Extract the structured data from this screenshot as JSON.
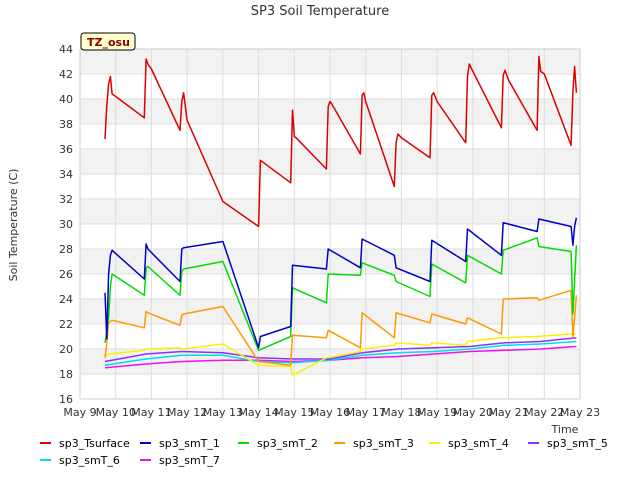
{
  "chart_data": {
    "type": "line",
    "title": "SP3 Soil Temperature",
    "xlabel": "Time",
    "ylabel": "Soil Temperature (C)",
    "annotation": "TZ_osu",
    "x_ticks": [
      "May 9",
      "May 10",
      "May 11",
      "May 12",
      "May 13",
      "May 14",
      "May 15",
      "May 16",
      "May 17",
      "May 18",
      "May 19",
      "May 20",
      "May 21",
      "May 22",
      "May 23"
    ],
    "xlim": [
      9,
      23
    ],
    "ylim": [
      16,
      44
    ],
    "y_ticks": [
      16,
      18,
      20,
      22,
      24,
      26,
      28,
      30,
      32,
      34,
      36,
      38,
      40,
      42,
      44
    ],
    "grid": true,
    "background_bands": true,
    "legend_position": "bottom",
    "series": [
      {
        "name": "sp3_Tsurface",
        "color": "#dd0000",
        "x": [
          9.7,
          9.75,
          9.8,
          9.85,
          9.9,
          10.0,
          10.8,
          10.85,
          10.9,
          11.0,
          11.8,
          11.85,
          11.9,
          12.0,
          13.0,
          14.0,
          14.05,
          14.9,
          14.95,
          15.0,
          15.05,
          15.9,
          15.95,
          16.0,
          16.05,
          16.85,
          16.9,
          16.95,
          17.0,
          17.8,
          17.85,
          17.9,
          18.0,
          18.8,
          18.85,
          18.9,
          19.0,
          19.8,
          19.85,
          19.9,
          20.0,
          20.8,
          20.85,
          20.9,
          21.0,
          21.8,
          21.85,
          21.9,
          22.0,
          22.75,
          22.8,
          22.85,
          22.9
        ],
        "y": [
          36.8,
          39.5,
          41.2,
          41.8,
          40.4,
          40.2,
          38.5,
          43.2,
          42.8,
          42.4,
          37.5,
          39.8,
          40.5,
          38.3,
          31.8,
          29.8,
          35.1,
          33.3,
          39.1,
          37.0,
          36.9,
          34.4,
          39.4,
          39.8,
          39.6,
          35.6,
          40.3,
          40.5,
          39.8,
          33.0,
          36.5,
          37.2,
          36.9,
          35.3,
          40.3,
          40.5,
          39.8,
          36.5,
          41.8,
          42.8,
          42.2,
          37.7,
          41.9,
          42.3,
          41.5,
          37.5,
          43.4,
          42.2,
          42.0,
          36.3,
          40.6,
          42.6,
          40.5
        ]
      },
      {
        "name": "sp3_smT_1",
        "color": "#0000cc",
        "x": [
          9.7,
          9.75,
          9.8,
          9.85,
          9.9,
          10.8,
          10.85,
          10.9,
          11.8,
          11.85,
          11.9,
          13.0,
          14.0,
          14.05,
          14.9,
          14.95,
          15.9,
          15.95,
          16.85,
          16.9,
          17.8,
          17.85,
          18.8,
          18.85,
          19.8,
          19.85,
          20.8,
          20.85,
          21.8,
          21.85,
          22.75,
          22.8,
          22.85,
          22.9
        ],
        "y": [
          24.5,
          20.8,
          26.0,
          27.5,
          27.9,
          25.6,
          28.4,
          28.0,
          25.4,
          28.0,
          28.1,
          28.6,
          20.1,
          21.0,
          21.8,
          26.7,
          26.4,
          28.0,
          26.5,
          28.8,
          27.5,
          26.5,
          25.4,
          28.7,
          27.0,
          29.6,
          27.5,
          30.1,
          29.4,
          30.4,
          29.8,
          28.3,
          29.8,
          30.5
        ]
      },
      {
        "name": "sp3_smT_2",
        "color": "#00dd00",
        "x": [
          9.7,
          9.8,
          9.85,
          9.9,
          10.8,
          10.85,
          10.9,
          11.8,
          11.85,
          11.9,
          13.0,
          14.0,
          14.9,
          14.95,
          15.9,
          15.95,
          16.85,
          16.9,
          17.8,
          17.85,
          18.8,
          18.85,
          19.8,
          19.85,
          20.8,
          20.85,
          21.8,
          21.85,
          22.75,
          22.8,
          22.9
        ],
        "y": [
          20.5,
          22.5,
          25.0,
          26.0,
          24.3,
          26.5,
          26.6,
          24.3,
          26.2,
          26.4,
          27.0,
          19.9,
          21.0,
          24.9,
          23.7,
          26.0,
          25.9,
          26.9,
          25.9,
          25.4,
          24.2,
          26.8,
          25.3,
          27.5,
          26.0,
          27.9,
          28.9,
          28.2,
          27.8,
          22.8,
          28.3
        ]
      },
      {
        "name": "sp3_smT_3",
        "color": "#ff9900",
        "x": [
          9.7,
          9.75,
          9.8,
          9.9,
          10.8,
          10.85,
          10.9,
          11.8,
          11.85,
          11.9,
          13.0,
          14.0,
          14.9,
          14.95,
          15.9,
          15.95,
          16.85,
          16.9,
          17.8,
          17.85,
          18.8,
          18.85,
          19.8,
          19.85,
          20.8,
          20.85,
          21.8,
          21.85,
          22.75,
          22.8,
          22.9
        ],
        "y": [
          19.3,
          20.5,
          22.1,
          22.3,
          21.7,
          23.0,
          22.9,
          21.9,
          22.7,
          22.8,
          23.4,
          19.0,
          18.7,
          21.1,
          20.9,
          21.5,
          20.1,
          22.9,
          20.9,
          22.9,
          22.1,
          22.8,
          22.0,
          22.5,
          21.2,
          24.0,
          24.1,
          23.9,
          24.7,
          20.9,
          24.3
        ]
      },
      {
        "name": "sp3_smT_4",
        "color": "#ffee00",
        "x": [
          9.7,
          9.75,
          9.8,
          10.8,
          10.85,
          11.8,
          11.85,
          13.0,
          14.0,
          14.9,
          14.95,
          15.9,
          16.85,
          16.9,
          17.8,
          17.85,
          18.8,
          18.85,
          19.8,
          19.85,
          20.8,
          21.8,
          22.75,
          22.9
        ],
        "y": [
          19.3,
          19.5,
          19.6,
          19.9,
          20.0,
          20.1,
          20.0,
          20.4,
          18.7,
          18.6,
          17.9,
          19.3,
          19.8,
          20.0,
          20.3,
          20.5,
          20.3,
          20.5,
          20.3,
          20.6,
          20.9,
          21.0,
          21.2,
          21.2
        ]
      },
      {
        "name": "sp3_smT_5",
        "color": "#8833ff",
        "x": [
          9.7,
          10.85,
          11.85,
          13.0,
          14.0,
          14.95,
          16.0,
          16.9,
          17.9,
          18.9,
          19.9,
          20.9,
          21.9,
          22.9
        ],
        "y": [
          19.0,
          19.6,
          19.8,
          19.7,
          19.3,
          19.2,
          19.2,
          19.7,
          20.0,
          20.1,
          20.2,
          20.5,
          20.6,
          20.9
        ]
      },
      {
        "name": "sp3_smT_6",
        "color": "#00ddee",
        "x": [
          9.7,
          10.85,
          11.85,
          13.0,
          14.0,
          14.95,
          16.0,
          16.9,
          17.9,
          18.9,
          19.9,
          20.9,
          21.9,
          22.9
        ],
        "y": [
          18.7,
          19.2,
          19.5,
          19.5,
          19.0,
          18.9,
          19.1,
          19.5,
          19.7,
          19.8,
          20.0,
          20.3,
          20.4,
          20.6
        ]
      },
      {
        "name": "sp3_smT_7",
        "color": "#ee11ee",
        "x": [
          9.7,
          10.85,
          11.85,
          13.0,
          14.0,
          14.95,
          16.0,
          16.9,
          17.9,
          18.9,
          19.9,
          20.9,
          21.9,
          22.9
        ],
        "y": [
          18.5,
          18.8,
          19.0,
          19.1,
          19.1,
          19.0,
          19.1,
          19.3,
          19.4,
          19.6,
          19.8,
          19.9,
          20.0,
          20.2
        ]
      }
    ]
  }
}
